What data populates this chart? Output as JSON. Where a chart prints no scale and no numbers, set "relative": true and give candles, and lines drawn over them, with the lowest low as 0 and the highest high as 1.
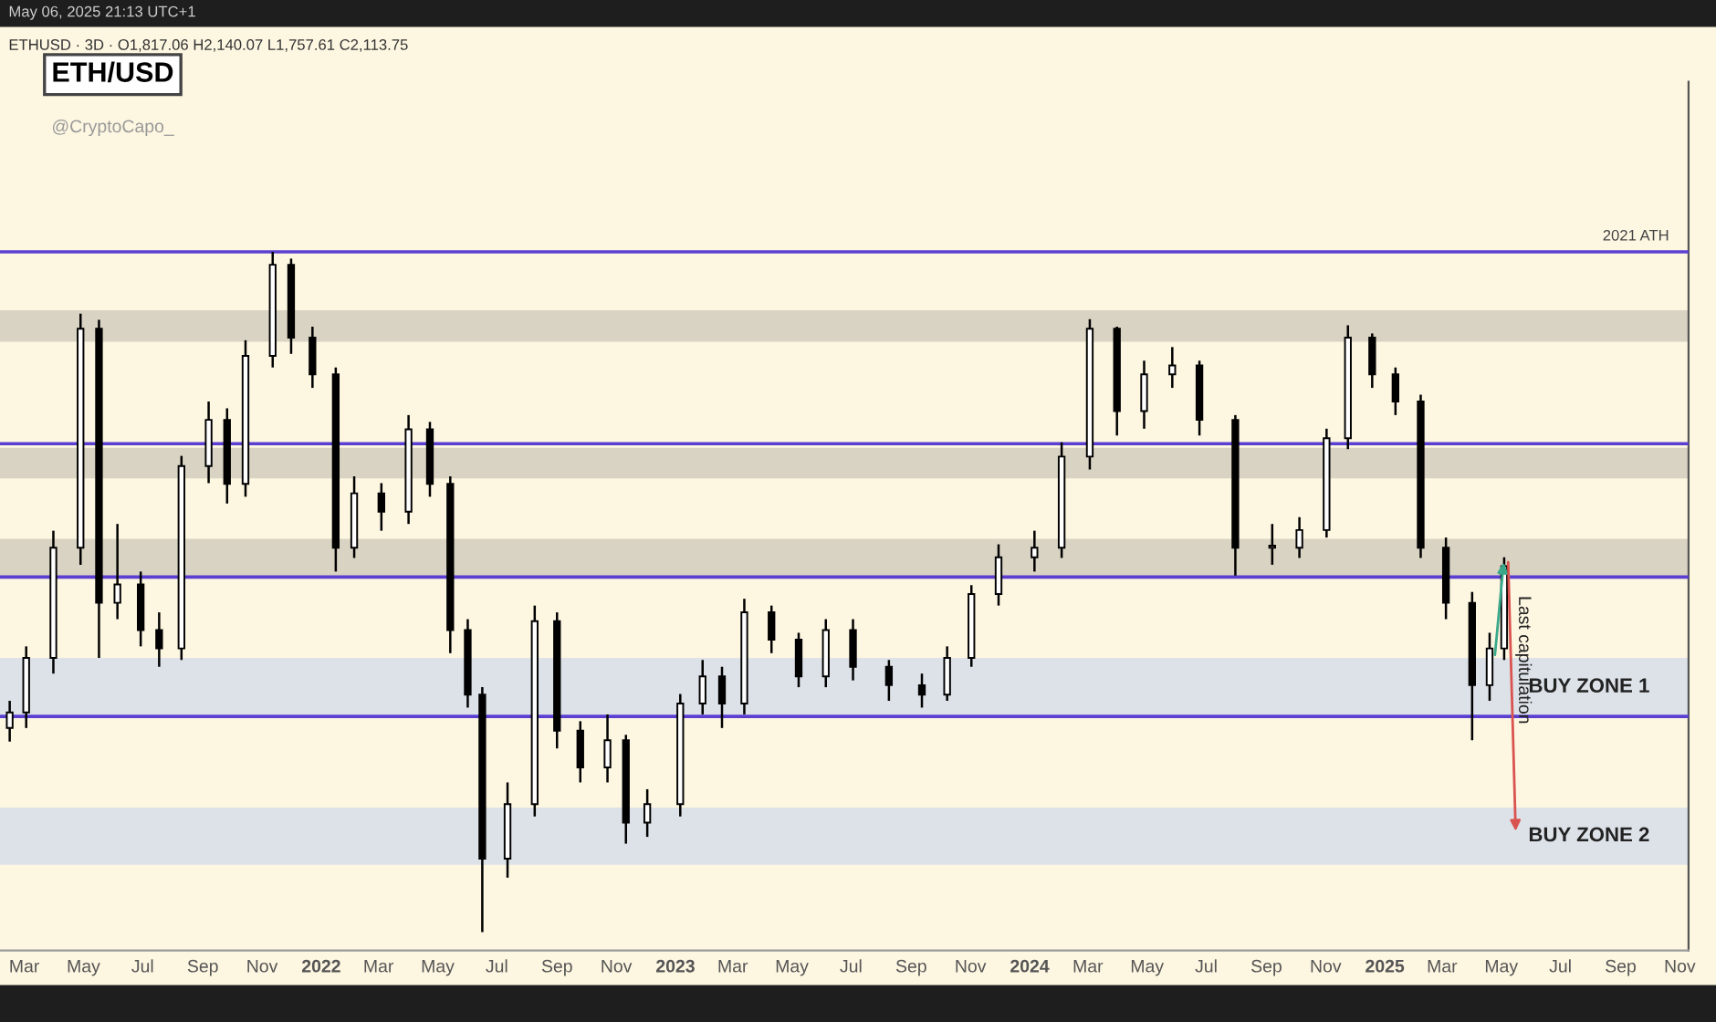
{
  "chart_data": {
    "type": "candlestick",
    "title": "ETH/USD",
    "relative": true,
    "color": "#000000",
    "tick_labels": "x",
    "grid": false,
    "annotations": [
      "May 06, 2025 21:13 UTC+1",
      "ETHUSD · 3D · O1,817.06 H2,140.07 L1,757.61 C2,113.75",
      "@CryptoCapo_",
      {
        "text": "Last capitulation",
        "x": "2025-05-24",
        "y": 0.4
      }
    ],
    "x": [
      "2021-02-14",
      "2021-03-03",
      "2021-03-31",
      "2021-04-28",
      "2021-05-17",
      "2021-06-05",
      "2021-06-29",
      "2021-07-18",
      "2021-08-10",
      "2021-09-07",
      "2021-09-26",
      "2021-10-15",
      "2021-11-12",
      "2021-12-01",
      "2021-12-23",
      "2022-01-16",
      "2022-02-04",
      "2022-03-04",
      "2022-04-01",
      "2022-04-23",
      "2022-05-14",
      "2022-06-01",
      "2022-06-16",
      "2022-07-12",
      "2022-08-09",
      "2022-09-01",
      "2022-09-25",
      "2022-10-23",
      "2022-11-11",
      "2022-12-03",
      "2023-01-06",
      "2023-01-29",
      "2023-02-18",
      "2023-03-13",
      "2023-04-10",
      "2023-05-08",
      "2023-06-05",
      "2023-07-03",
      "2023-08-09",
      "2023-09-12",
      "2023-10-08",
      "2023-11-02",
      "2023-11-30",
      "2024-01-06",
      "2024-02-03",
      "2024-03-03",
      "2024-03-31",
      "2024-04-28",
      "2024-05-27",
      "2024-06-24",
      "2024-07-31",
      "2024-09-07",
      "2024-10-05",
      "2024-11-02",
      "2024-11-24",
      "2024-12-19",
      "2025-01-12",
      "2025-02-07",
      "2025-03-05",
      "2025-04-01",
      "2025-04-19",
      "2025-05-04"
    ],
    "ohlc": [
      [
        0.3,
        0.34,
        0.28,
        0.323
      ],
      [
        0.323,
        0.42,
        0.3,
        0.403
      ],
      [
        0.403,
        0.59,
        0.38,
        0.565
      ],
      [
        0.565,
        0.909,
        0.54,
        0.887
      ],
      [
        0.887,
        0.9,
        0.403,
        0.484
      ],
      [
        0.484,
        0.6,
        0.46,
        0.511
      ],
      [
        0.511,
        0.53,
        0.42,
        0.444
      ],
      [
        0.444,
        0.47,
        0.39,
        0.417
      ],
      [
        0.417,
        0.7,
        0.4,
        0.685
      ],
      [
        0.685,
        0.78,
        0.66,
        0.753
      ],
      [
        0.753,
        0.77,
        0.63,
        0.659
      ],
      [
        0.659,
        0.87,
        0.64,
        0.847
      ],
      [
        0.847,
        1.0,
        0.83,
        0.981
      ],
      [
        0.981,
        0.99,
        0.85,
        0.874
      ],
      [
        0.874,
        0.89,
        0.8,
        0.82
      ],
      [
        0.82,
        0.83,
        0.53,
        0.565
      ],
      [
        0.565,
        0.67,
        0.55,
        0.645
      ],
      [
        0.645,
        0.66,
        0.59,
        0.618
      ],
      [
        0.618,
        0.76,
        0.6,
        0.739
      ],
      [
        0.739,
        0.75,
        0.64,
        0.659
      ],
      [
        0.659,
        0.67,
        0.41,
        0.444
      ],
      [
        0.444,
        0.46,
        0.33,
        0.349
      ],
      [
        0.349,
        0.36,
        0.0,
        0.108
      ],
      [
        0.108,
        0.22,
        0.08,
        0.188
      ],
      [
        0.188,
        0.48,
        0.17,
        0.457
      ],
      [
        0.457,
        0.47,
        0.27,
        0.296
      ],
      [
        0.296,
        0.31,
        0.22,
        0.242
      ],
      [
        0.242,
        0.32,
        0.22,
        0.282
      ],
      [
        0.282,
        0.29,
        0.13,
        0.161
      ],
      [
        0.161,
        0.21,
        0.14,
        0.188
      ],
      [
        0.188,
        0.35,
        0.17,
        0.336
      ],
      [
        0.336,
        0.4,
        0.32,
        0.376
      ],
      [
        0.376,
        0.39,
        0.3,
        0.336
      ],
      [
        0.336,
        0.49,
        0.32,
        0.47
      ],
      [
        0.47,
        0.48,
        0.41,
        0.43
      ],
      [
        0.43,
        0.44,
        0.36,
        0.376
      ],
      [
        0.376,
        0.46,
        0.36,
        0.444
      ],
      [
        0.444,
        0.46,
        0.37,
        0.39
      ],
      [
        0.39,
        0.4,
        0.34,
        0.363
      ],
      [
        0.363,
        0.38,
        0.33,
        0.349
      ],
      [
        0.349,
        0.42,
        0.34,
        0.403
      ],
      [
        0.403,
        0.51,
        0.39,
        0.497
      ],
      [
        0.497,
        0.57,
        0.48,
        0.551
      ],
      [
        0.551,
        0.59,
        0.53,
        0.565
      ],
      [
        0.565,
        0.72,
        0.55,
        0.699
      ],
      [
        0.699,
        0.901,
        0.68,
        0.887
      ],
      [
        0.887,
        0.89,
        0.73,
        0.766
      ],
      [
        0.766,
        0.84,
        0.74,
        0.82
      ],
      [
        0.82,
        0.86,
        0.8,
        0.833
      ],
      [
        0.833,
        0.84,
        0.73,
        0.753
      ],
      [
        0.753,
        0.76,
        0.524,
        0.565
      ],
      [
        0.565,
        0.6,
        0.54,
        0.565
      ],
      [
        0.565,
        0.61,
        0.55,
        0.591
      ],
      [
        0.591,
        0.74,
        0.58,
        0.726
      ],
      [
        0.726,
        0.892,
        0.71,
        0.874
      ],
      [
        0.874,
        0.88,
        0.8,
        0.82
      ],
      [
        0.82,
        0.83,
        0.76,
        0.78
      ],
      [
        0.78,
        0.79,
        0.55,
        0.565
      ],
      [
        0.565,
        0.58,
        0.46,
        0.484
      ],
      [
        0.484,
        0.5,
        0.282,
        0.363
      ],
      [
        0.363,
        0.44,
        0.34,
        0.417
      ],
      [
        0.417,
        0.551,
        0.4,
        0.538
      ]
    ],
    "xlim": [
      "2021-02-04",
      "2025-11-10"
    ],
    "xticks": [
      {
        "value": "2021-03-01",
        "label": "Mar"
      },
      {
        "value": "2021-05-01",
        "label": "May"
      },
      {
        "value": "2021-07-01",
        "label": "Jul"
      },
      {
        "value": "2021-09-01",
        "label": "Sep"
      },
      {
        "value": "2021-11-01",
        "label": "Nov"
      },
      {
        "value": "2022-01-01",
        "label": "2022"
      },
      {
        "value": "2022-03-01",
        "label": "Mar"
      },
      {
        "value": "2022-05-01",
        "label": "May"
      },
      {
        "value": "2022-07-01",
        "label": "Jul"
      },
      {
        "value": "2022-09-01",
        "label": "Sep"
      },
      {
        "value": "2022-11-01",
        "label": "Nov"
      },
      {
        "value": "2023-01-01",
        "label": "2023"
      },
      {
        "value": "2023-03-01",
        "label": "Mar"
      },
      {
        "value": "2023-05-01",
        "label": "May"
      },
      {
        "value": "2023-07-01",
        "label": "Jul"
      },
      {
        "value": "2023-09-01",
        "label": "Sep"
      },
      {
        "value": "2023-11-01",
        "label": "Nov"
      },
      {
        "value": "2024-01-01",
        "label": "2024"
      },
      {
        "value": "2024-03-01",
        "label": "Mar"
      },
      {
        "value": "2024-05-01",
        "label": "May"
      },
      {
        "value": "2024-07-01",
        "label": "Jul"
      },
      {
        "value": "2024-09-01",
        "label": "Sep"
      },
      {
        "value": "2024-11-01",
        "label": "Nov"
      },
      {
        "value": "2025-01-01",
        "label": "2025"
      },
      {
        "value": "2025-03-01",
        "label": "Mar"
      },
      {
        "value": "2025-05-01",
        "label": "May"
      },
      {
        "value": "2025-07-01",
        "label": "Jul"
      },
      {
        "value": "2025-09-01",
        "label": "Sep"
      },
      {
        "value": "2025-11-01",
        "label": "Nov"
      }
    ],
    "ref_lines": [
      {
        "axis": "y",
        "value": 1.0,
        "label": "2021 ATH",
        "color": "#5b3fd1"
      },
      {
        "axis": "y",
        "value": 0.718,
        "label": null,
        "color": "#5b3fd1"
      },
      {
        "axis": "y",
        "value": 0.522,
        "label": null,
        "color": "#5b3fd1"
      },
      {
        "axis": "y",
        "value": 0.317,
        "label": null,
        "color": "#5b3fd1"
      }
    ],
    "bands": [
      {
        "axis": "y",
        "from": 0.868,
        "to": 0.914,
        "label": null,
        "color": "#d9d3c3"
      },
      {
        "axis": "y",
        "from": 0.667,
        "to": 0.712,
        "label": null,
        "color": "#d9d3c3"
      },
      {
        "axis": "y",
        "from": 0.522,
        "to": 0.578,
        "label": null,
        "color": "#d9d3c3"
      },
      {
        "axis": "y",
        "from": 0.317,
        "to": 0.403,
        "label": "BUY ZONE 1",
        "color": "#dde2e8"
      },
      {
        "axis": "y",
        "from": 0.099,
        "to": 0.183,
        "label": "BUY ZONE 2",
        "color": "#dde2e8"
      }
    ]
  }
}
